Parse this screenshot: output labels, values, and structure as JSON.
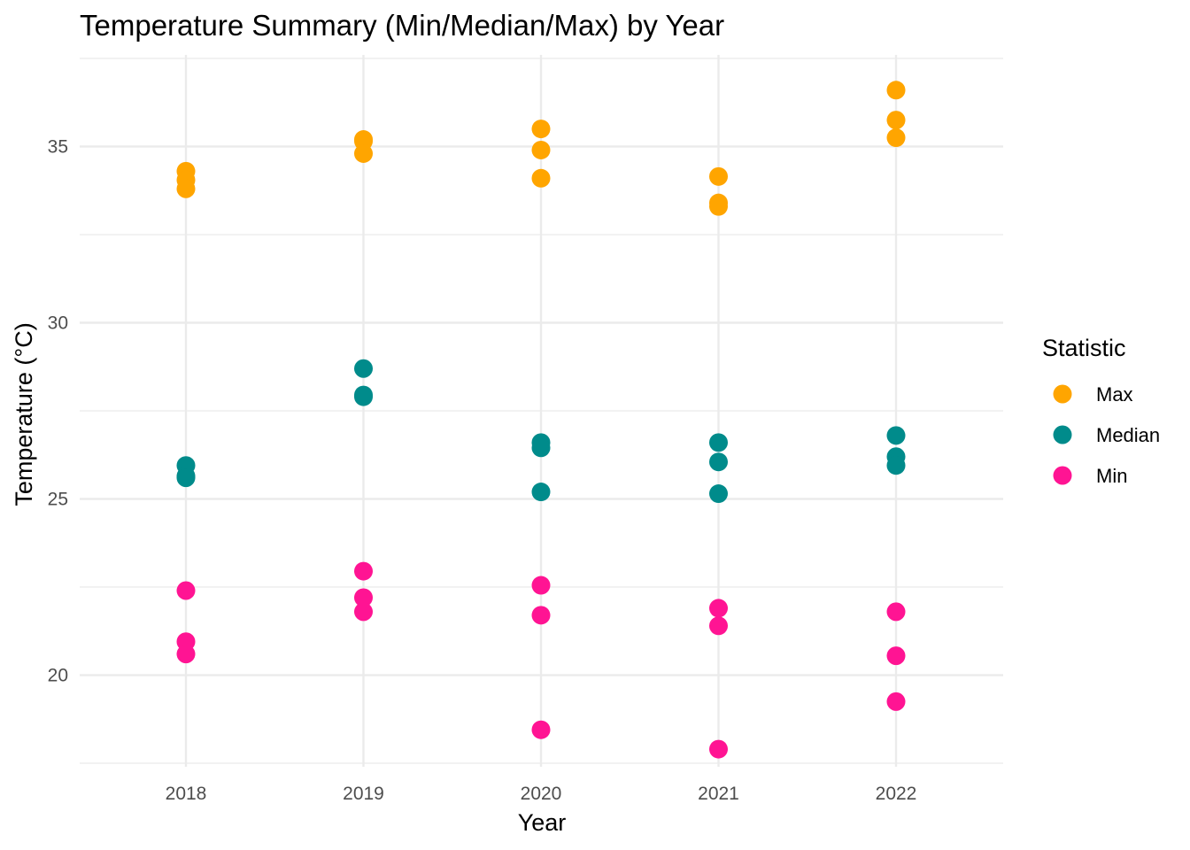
{
  "chart_data": {
    "type": "scatter",
    "title": "Temperature Summary (Min/Median/Max) by Year",
    "xlabel": "Year",
    "ylabel": "Temperature (°C)",
    "categories": [
      "2018",
      "2019",
      "2020",
      "2021",
      "2022"
    ],
    "ylim": [
      17.4,
      37.6
    ],
    "yticks": [
      20,
      25,
      30,
      35
    ],
    "ytick_labels": [
      "20",
      "25",
      "30",
      "35"
    ],
    "grid": true,
    "legend": {
      "title": "Statistic",
      "position": "right"
    },
    "series": [
      {
        "name": "Max",
        "color": "#FFA500",
        "points": [
          {
            "x": "2018",
            "y": 34.3
          },
          {
            "x": "2018",
            "y": 34.05
          },
          {
            "x": "2018",
            "y": 33.8
          },
          {
            "x": "2019",
            "y": 35.2
          },
          {
            "x": "2019",
            "y": 35.15
          },
          {
            "x": "2019",
            "y": 34.8
          },
          {
            "x": "2020",
            "y": 35.5
          },
          {
            "x": "2020",
            "y": 34.9
          },
          {
            "x": "2020",
            "y": 34.1
          },
          {
            "x": "2021",
            "y": 34.15
          },
          {
            "x": "2021",
            "y": 33.4
          },
          {
            "x": "2021",
            "y": 33.3
          },
          {
            "x": "2022",
            "y": 36.6
          },
          {
            "x": "2022",
            "y": 35.75
          },
          {
            "x": "2022",
            "y": 35.25
          }
        ]
      },
      {
        "name": "Median",
        "color": "#008B8B",
        "points": [
          {
            "x": "2018",
            "y": 25.95
          },
          {
            "x": "2018",
            "y": 25.65
          },
          {
            "x": "2018",
            "y": 25.6
          },
          {
            "x": "2019",
            "y": 28.7
          },
          {
            "x": "2019",
            "y": 27.95
          },
          {
            "x": "2019",
            "y": 27.9
          },
          {
            "x": "2020",
            "y": 26.6
          },
          {
            "x": "2020",
            "y": 26.45
          },
          {
            "x": "2020",
            "y": 25.2
          },
          {
            "x": "2021",
            "y": 26.6
          },
          {
            "x": "2021",
            "y": 26.05
          },
          {
            "x": "2021",
            "y": 25.15
          },
          {
            "x": "2022",
            "y": 26.8
          },
          {
            "x": "2022",
            "y": 26.2
          },
          {
            "x": "2022",
            "y": 25.95
          }
        ]
      },
      {
        "name": "Min",
        "color": "#FF1493",
        "points": [
          {
            "x": "2018",
            "y": 22.4
          },
          {
            "x": "2018",
            "y": 20.95
          },
          {
            "x": "2018",
            "y": 20.6
          },
          {
            "x": "2019",
            "y": 22.95
          },
          {
            "x": "2019",
            "y": 22.2
          },
          {
            "x": "2019",
            "y": 21.8
          },
          {
            "x": "2020",
            "y": 22.55
          },
          {
            "x": "2020",
            "y": 21.7
          },
          {
            "x": "2020",
            "y": 18.45
          },
          {
            "x": "2021",
            "y": 21.9
          },
          {
            "x": "2021",
            "y": 21.4
          },
          {
            "x": "2021",
            "y": 17.9
          },
          {
            "x": "2022",
            "y": 21.8
          },
          {
            "x": "2022",
            "y": 20.55
          },
          {
            "x": "2022",
            "y": 19.25
          }
        ]
      }
    ]
  }
}
